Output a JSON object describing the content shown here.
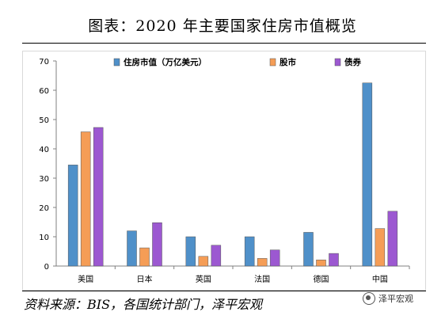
{
  "title": "图表：2020 年主要国家住房市值概览",
  "source": "资料来源：BIS，各国统计部门，泽平宏观",
  "brand": {
    "logo": "泽平宏观"
  },
  "chart_data": {
    "type": "bar",
    "categories": [
      "美国",
      "日本",
      "英国",
      "法国",
      "德国",
      "中国"
    ],
    "series": [
      {
        "name": "住房市值（万亿美元）",
        "color": "#4f90c9",
        "values": [
          34.5,
          12,
          10,
          10,
          11.5,
          62.5
        ]
      },
      {
        "name": "股市",
        "color": "#f59d56",
        "values": [
          45.8,
          6.2,
          3.3,
          2.6,
          2.1,
          12.8
        ]
      },
      {
        "name": "债券",
        "color": "#9c58d1",
        "values": [
          47.3,
          14.8,
          7.1,
          5.5,
          4.3,
          18.7
        ]
      }
    ],
    "ylim": [
      0,
      70
    ],
    "yticks": [
      0,
      10,
      20,
      30,
      40,
      50,
      60,
      70
    ],
    "legend": "top",
    "grid": false
  }
}
